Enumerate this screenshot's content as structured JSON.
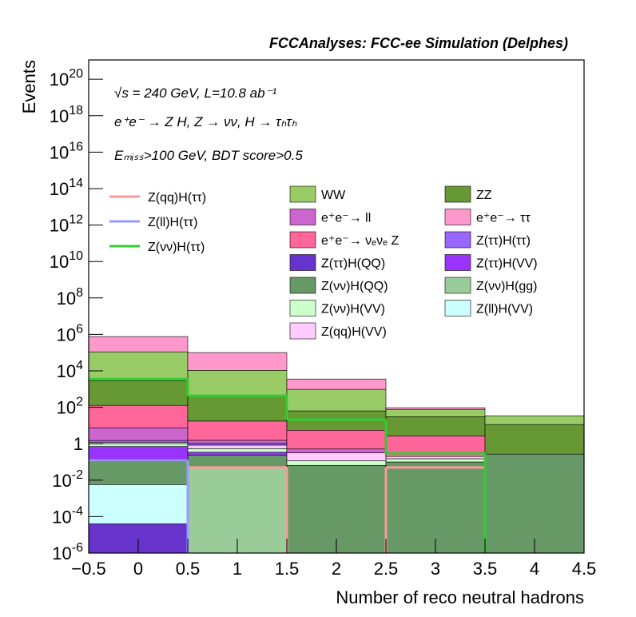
{
  "chart_data": {
    "type": "histogram",
    "title": "FCCAnalyses: FCC-ee Simulation (Delphes)",
    "annotations": [
      "√s = 240 GeV, L=10.8 ab⁻¹",
      "e⁺e⁻ → Z H, Z → νν, H → τₕτₕ",
      "Eₘᵢₛₛ>100 GeV, BDT score>0.5"
    ],
    "xlabel": "Number of reco neutral hadrons",
    "ylabel": "Events",
    "bins": [
      -0.5,
      0.5,
      1.5,
      2.5,
      3.5,
      4.5
    ],
    "log_y": true,
    "xlim": [
      -0.5,
      4.5
    ],
    "ylim": [
      1e-06,
      1.15e+21
    ],
    "xticks": [
      {
        "value": -0.5,
        "label": "−0.5"
      },
      0,
      0.5,
      1,
      1.5,
      2,
      2.5,
      3,
      3.5,
      4,
      4.5
    ],
    "yticks": [
      {
        "value": 1e-06,
        "label": "10^-6"
      },
      {
        "value": 0.0001,
        "label": "10^-4"
      },
      {
        "value": 0.01,
        "label": "10^-2"
      },
      1,
      {
        "value": 100,
        "label": "10^2"
      },
      {
        "value": 10000,
        "label": "10^4"
      },
      {
        "value": 1000000,
        "label": "10^6"
      },
      {
        "value": 100000000,
        "label": "10^8"
      },
      {
        "value": 10000000000,
        "label": "10^10"
      },
      {
        "value": 1000000000000,
        "label": "10^12"
      },
      {
        "value": 100000000000000,
        "label": "10^14"
      },
      {
        "value": 10000000000000000,
        "label": "10^16"
      },
      {
        "value": 1000000000000000000,
        "label": "10^18"
      },
      {
        "value": 100000000000000000000,
        "label": "10^20"
      }
    ],
    "series": [
      {
        "name": "Z(ττ)H(QQ)",
        "color": "#6633cc",
        "stack": true,
        "values": [
          4e-05,
          0,
          0,
          0,
          0
        ]
      },
      {
        "name": "Z(ll)H(VV)",
        "color": "#ccffff",
        "stack": true,
        "values": [
          0.0057,
          0,
          0,
          0,
          0
        ]
      },
      {
        "name": "Z(νν)H(gg)",
        "color": "#99cc99",
        "stack": true,
        "values": [
          0,
          0.05,
          0,
          0,
          0
        ]
      },
      {
        "name": "Z(νν)H(QQ)",
        "color": "#669966",
        "stack": true,
        "values": [
          0.1,
          0.19,
          0.065,
          0.1,
          0.27
        ]
      },
      {
        "name": "Z(ττ)H(VV)",
        "color": "#9933ff",
        "stack": true,
        "values": [
          0.6,
          0.1,
          0,
          0,
          0
        ]
      },
      {
        "name": "Z(νν)H(VV)",
        "color": "#ccffcc",
        "stack": true,
        "values": [
          0.3,
          0.2,
          0.05,
          0.05,
          0
        ]
      },
      {
        "name": "Z(qq)H(VV)",
        "color": "#ffccff",
        "stack": true,
        "values": [
          0.2,
          0.3,
          0.2,
          0.05,
          0
        ]
      },
      {
        "name": "Z(ττ)H(ττ)",
        "color": "#9966ff",
        "stack": true,
        "values": [
          0.3,
          0.2,
          0,
          0,
          0
        ]
      },
      {
        "name": "e⁺e⁻→ ll",
        "color": "#cc66cc",
        "stack": true,
        "values": [
          6,
          0.5,
          0.2,
          0,
          0
        ]
      },
      {
        "name": "e⁺e⁻→ νₑνₑ Z",
        "color": "#ff6699",
        "stack": true,
        "values": [
          120,
          16,
          5,
          2.5,
          0
        ]
      },
      {
        "name": "ZZ",
        "color": "#669933",
        "stack": true,
        "values": [
          2800,
          370,
          58,
          28,
          11
        ]
      },
      {
        "name": "WW",
        "color": "#99cc66",
        "stack": true,
        "values": [
          107000,
          10300,
          900,
          46,
          23
        ]
      },
      {
        "name": "e⁺e⁻→ ττ",
        "color": "#ff99cc",
        "stack": true,
        "values": [
          650000,
          90000,
          2600,
          18,
          0
        ]
      },
      {
        "name": "Z(qq)H(ττ)",
        "color": "#ff9999",
        "stack": false,
        "values": [
          0,
          0.05,
          0,
          0.05,
          0
        ]
      },
      {
        "name": "Z(ll)H(ττ)",
        "color": "#9999ff",
        "stack": false,
        "values": [
          0.12,
          0,
          0,
          0,
          0
        ]
      },
      {
        "name": "Z(νν)H(ττ)",
        "color": "#33cc33",
        "stack": false,
        "values": [
          3500,
          430,
          21,
          0.3,
          0
        ]
      }
    ]
  }
}
